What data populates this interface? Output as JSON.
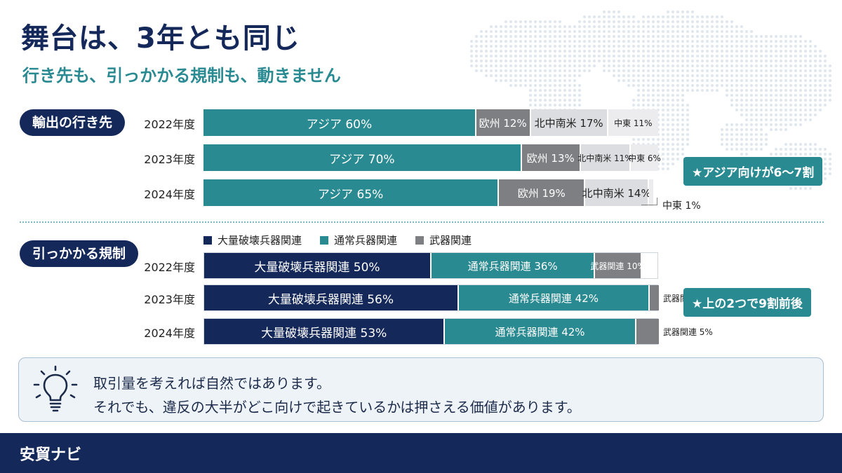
{
  "header": {
    "title": "舞台は、3年とも同じ",
    "subtitle": "行き先も、引っかかる規制も、動きません"
  },
  "colors": {
    "navy": "#14285a",
    "teal": "#2a8a92",
    "gray": "#7d7f83",
    "light_gray": "#dcdde0",
    "lighter_gray": "#ececee",
    "map_dot": "#dfe6ee"
  },
  "chart_data": [
    {
      "type": "bar",
      "stacked": true,
      "orientation": "horizontal",
      "section_label": "輸出の行き先",
      "categories": [
        "2022年度",
        "2023年度",
        "2024年度"
      ],
      "series": [
        {
          "name": "アジア",
          "values": [
            60,
            70,
            65
          ],
          "color": "#2a8a92",
          "text_color": "#ffffff",
          "labels": [
            "アジア 60%",
            "アジア 70%",
            "アジア 65%"
          ]
        },
        {
          "name": "欧州",
          "values": [
            12,
            13,
            19
          ],
          "color": "#7d7f83",
          "text_color": "#ffffff",
          "labels": [
            "欧州 12%",
            "欧州 13%",
            "欧州 19%"
          ]
        },
        {
          "name": "北中南米",
          "values": [
            17,
            11,
            14
          ],
          "color": "#dcdde0",
          "text_color": "#222222",
          "labels": [
            "北中南米 17%",
            "北中南米 11%",
            "北中南米 14%"
          ]
        },
        {
          "name": "中東",
          "values": [
            11,
            6,
            1
          ],
          "color": "#ececee",
          "text_color": "#222222",
          "labels": [
            "中東 11%",
            "中東 6%",
            ""
          ]
        }
      ],
      "callout": {
        "text": "中東 1%"
      },
      "badge": "★アジア向けが6～7割"
    },
    {
      "type": "bar",
      "stacked": true,
      "orientation": "horizontal",
      "section_label": "引っかかる規制",
      "categories": [
        "2022年度",
        "2023年度",
        "2024年度"
      ],
      "legend": [
        {
          "label": "大量破壊兵器関連",
          "color": "#14285a"
        },
        {
          "label": "通常兵器関連",
          "color": "#2a8a92"
        },
        {
          "label": "武器関連",
          "color": "#7d7f83"
        }
      ],
      "series": [
        {
          "name": "大量破壊兵器関連",
          "values": [
            50,
            56,
            53
          ],
          "color": "#14285a",
          "text_color": "#ffffff",
          "labels": [
            "大量破壊兵器関連 50%",
            "大量破壊兵器関連 56%",
            "大量破壊兵器関連 53%"
          ]
        },
        {
          "name": "通常兵器関連",
          "values": [
            36,
            42,
            42
          ],
          "color": "#2a8a92",
          "text_color": "#ffffff",
          "labels": [
            "通常兵器関連 36%",
            "通常兵器関連 42%",
            "通常兵器関連 42%"
          ]
        },
        {
          "name": "武器関連",
          "values": [
            10,
            2,
            5
          ],
          "color": "#7d7f83",
          "text_color": "#ffffff",
          "labels": [
            "武器関連 10%",
            "武器関連 2%",
            "武器関連 5%"
          ]
        }
      ],
      "badge": "★上の2つで9割前後"
    }
  ],
  "note": {
    "line1": "取引量を考えれば自然ではあります。",
    "line2": "それでも、違反の大半がどこ向けで起きているかは押さえる価値があります。"
  },
  "footer": {
    "brand": "安貿ナビ"
  }
}
